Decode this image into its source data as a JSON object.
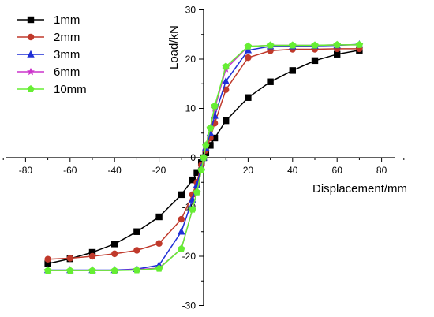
{
  "chart_data": {
    "type": "line",
    "title": "",
    "xlabel": "Displacement/mm",
    "ylabel": "Load/kN",
    "xlim": [
      -90,
      90
    ],
    "ylim": [
      -30,
      30
    ],
    "xticks": [
      -80,
      -60,
      -40,
      -20,
      20,
      40,
      60,
      80
    ],
    "yticks": [
      -30,
      -20,
      -10,
      0,
      10,
      20,
      30
    ],
    "grid": false,
    "legend_position": "top-left",
    "series": [
      {
        "name": "1mm",
        "color": "#000000",
        "marker": "square",
        "points": [
          [
            -70,
            -21.5
          ],
          [
            -60,
            -20.5
          ],
          [
            -50,
            -19.2
          ],
          [
            -40,
            -17.5
          ],
          [
            -30,
            -15
          ],
          [
            -20,
            -12
          ],
          [
            -10,
            -7.5
          ],
          [
            -5,
            -4.5
          ],
          [
            -3,
            -3
          ],
          [
            -1,
            -1
          ],
          [
            0,
            0
          ],
          [
            1,
            1
          ],
          [
            3,
            2.5
          ],
          [
            5,
            4
          ],
          [
            10,
            7.5
          ],
          [
            20,
            12.2
          ],
          [
            30,
            15.4
          ],
          [
            40,
            17.7
          ],
          [
            50,
            19.7
          ],
          [
            60,
            21
          ],
          [
            70,
            21.8
          ]
        ]
      },
      {
        "name": "2mm",
        "color": "#c0392b",
        "marker": "circle",
        "points": [
          [
            -70,
            -20.6
          ],
          [
            -60,
            -20.4
          ],
          [
            -50,
            -20
          ],
          [
            -40,
            -19.5
          ],
          [
            -30,
            -18.8
          ],
          [
            -20,
            -17.4
          ],
          [
            -10,
            -12.5
          ],
          [
            -5,
            -7.5
          ],
          [
            -3,
            -5
          ],
          [
            -1,
            -1.5
          ],
          [
            0,
            0
          ],
          [
            1,
            1.5
          ],
          [
            3,
            4
          ],
          [
            5,
            7
          ],
          [
            10,
            13.8
          ],
          [
            20,
            20.3
          ],
          [
            30,
            21.7
          ],
          [
            40,
            22
          ],
          [
            50,
            22
          ],
          [
            60,
            22.1
          ],
          [
            70,
            22.1
          ]
        ]
      },
      {
        "name": "3mm",
        "color": "#1f2fd6",
        "marker": "triangle",
        "points": [
          [
            -70,
            -22.8
          ],
          [
            -60,
            -22.8
          ],
          [
            -50,
            -22.8
          ],
          [
            -40,
            -22.8
          ],
          [
            -30,
            -22.6
          ],
          [
            -20,
            -21.8
          ],
          [
            -10,
            -15
          ],
          [
            -5,
            -8.5
          ],
          [
            -3,
            -5.5
          ],
          [
            -1,
            -2
          ],
          [
            0,
            0
          ],
          [
            1,
            2
          ],
          [
            3,
            5
          ],
          [
            5,
            8.5
          ],
          [
            10,
            15.5
          ],
          [
            20,
            21.8
          ],
          [
            30,
            22.6
          ],
          [
            40,
            22.6
          ],
          [
            50,
            22.7
          ],
          [
            60,
            22.8
          ],
          [
            70,
            23
          ]
        ]
      },
      {
        "name": "6mm",
        "color": "#cc33cc",
        "marker": "star",
        "points": [
          [
            -70,
            -22.9
          ],
          [
            -60,
            -22.9
          ],
          [
            -50,
            -22.9
          ],
          [
            -40,
            -22.9
          ],
          [
            -30,
            -22.7
          ],
          [
            -20,
            -22.4
          ],
          [
            -10,
            -18.5
          ],
          [
            -5,
            -10.5
          ],
          [
            -3,
            -7
          ],
          [
            -1,
            -2.5
          ],
          [
            0,
            0
          ],
          [
            1,
            2.5
          ],
          [
            3,
            6
          ],
          [
            5,
            10
          ],
          [
            10,
            18
          ],
          [
            20,
            22.6
          ],
          [
            30,
            22.8
          ],
          [
            40,
            22.8
          ],
          [
            50,
            22.8
          ],
          [
            60,
            22.9
          ],
          [
            70,
            22.9
          ]
        ]
      },
      {
        "name": "10mm",
        "color": "#66ee33",
        "marker": "diamond",
        "points": [
          [
            -70,
            -22.9
          ],
          [
            -60,
            -22.9
          ],
          [
            -50,
            -22.9
          ],
          [
            -40,
            -22.9
          ],
          [
            -30,
            -22.8
          ],
          [
            -20,
            -22.5
          ],
          [
            -10,
            -18.5
          ],
          [
            -5,
            -10.5
          ],
          [
            -3,
            -7
          ],
          [
            -1,
            -2.5
          ],
          [
            0,
            0
          ],
          [
            1,
            2.5
          ],
          [
            3,
            6
          ],
          [
            5,
            10.5
          ],
          [
            10,
            18.5
          ],
          [
            20,
            22.6
          ],
          [
            30,
            22.8
          ],
          [
            40,
            22.8
          ],
          [
            50,
            22.8
          ],
          [
            60,
            22.9
          ],
          [
            70,
            22.9
          ]
        ]
      }
    ]
  }
}
